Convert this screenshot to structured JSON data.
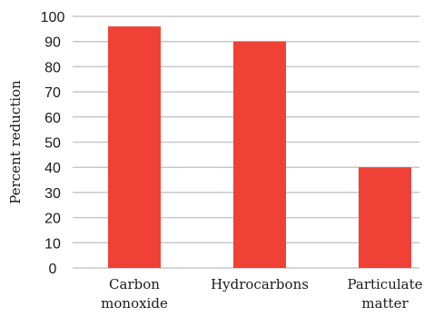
{
  "chart_data": {
    "type": "bar",
    "title": "",
    "ylabel": "Percent reduction",
    "xlabel": "",
    "categories": [
      [
        "Carbon",
        "monoxide"
      ],
      [
        "Hydrocarbons"
      ],
      [
        "Particulate",
        "matter"
      ]
    ],
    "values": [
      96,
      90,
      40
    ],
    "ylim": [
      0,
      100
    ],
    "yticks": [
      0,
      10,
      20,
      30,
      40,
      50,
      60,
      70,
      80,
      90,
      100
    ],
    "grid": true,
    "legend": "none",
    "colors": {
      "bar": "#ef4136",
      "grid": "#c8c8c8",
      "text": "#1a1a1a"
    }
  }
}
